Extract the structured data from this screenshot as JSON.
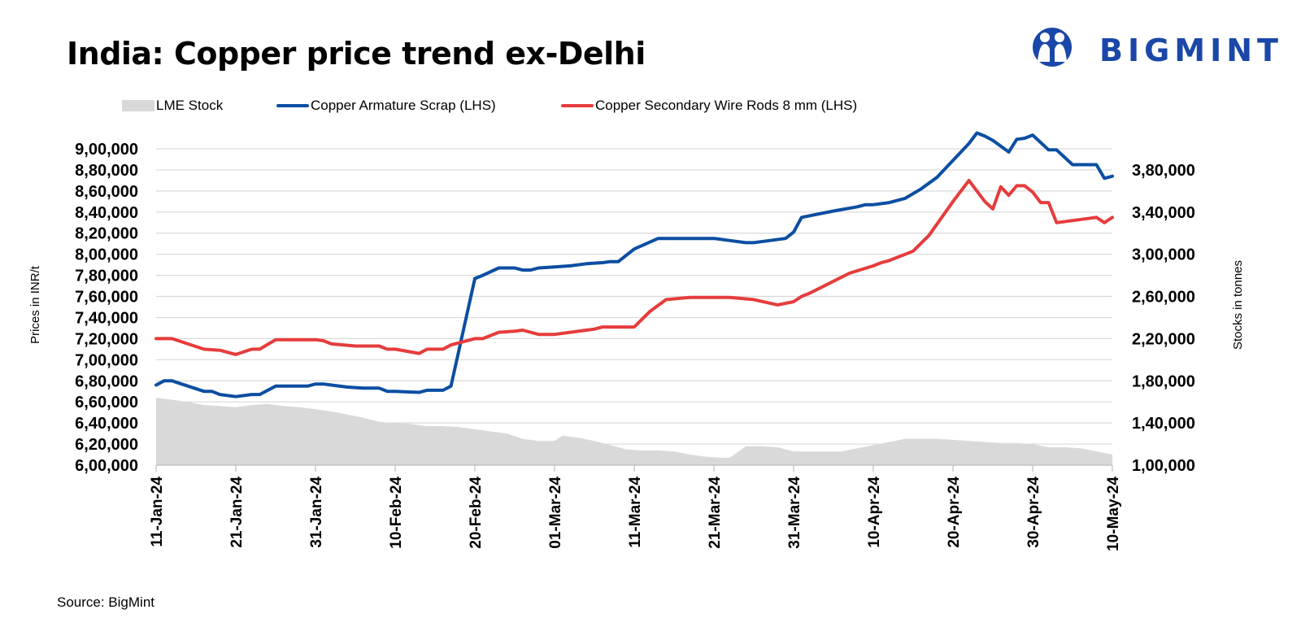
{
  "title": "India: Copper price trend ex-Delhi",
  "brand": {
    "name": "BIGMINT",
    "color": "#1a47a8"
  },
  "source": "Source: BigMint",
  "legend": [
    {
      "label": "LME Stock",
      "kind": "area",
      "color": "#d9d9d9"
    },
    {
      "label": "Copper Armature Scrap (LHS)",
      "kind": "line",
      "color": "#0b4ea2"
    },
    {
      "label": "Copper Secondary Wire Rods 8 mm (LHS)",
      "kind": "line",
      "color": "#e63c3c"
    }
  ],
  "chart_data": {
    "type": "line",
    "title": "India: Copper price trend ex-Delhi",
    "ylabel": "Prices in INR/t",
    "y2label": "Stocks in tonnes",
    "x_range": [
      "2024-01-11",
      "2024-05-10"
    ],
    "x_ticks": [
      "11-Jan-24",
      "21-Jan-24",
      "31-Jan-24",
      "10-Feb-24",
      "20-Feb-24",
      "01-Mar-24",
      "11-Mar-24",
      "21-Mar-24",
      "31-Mar-24",
      "10-Apr-24",
      "20-Apr-24",
      "30-Apr-24",
      "10-May-24"
    ],
    "ylim": [
      600000,
      900000
    ],
    "y_ticks": [
      "6,00,000",
      "6,20,000",
      "6,40,000",
      "6,60,000",
      "6,80,000",
      "7,00,000",
      "7,20,000",
      "7,40,000",
      "7,60,000",
      "7,80,000",
      "8,00,000",
      "8,20,000",
      "8,40,000",
      "8,60,000",
      "8,80,000",
      "9,00,000"
    ],
    "y2lim": [
      100000,
      380000
    ],
    "y2_ticks": [
      "1,00,000",
      "1,40,000",
      "1,80,000",
      "2,20,000",
      "2,60,000",
      "3,00,000",
      "3,40,000",
      "3,80,000"
    ],
    "grid": true,
    "legend_position": "top",
    "series": [
      {
        "name": "LME Stock",
        "axis": "right",
        "kind": "area",
        "color": "#d9d9d9",
        "x": [
          "2024-01-11",
          "2024-01-13",
          "2024-01-15",
          "2024-01-17",
          "2024-01-19",
          "2024-01-21",
          "2024-01-23",
          "2024-01-25",
          "2024-01-27",
          "2024-01-29",
          "2024-01-31",
          "2024-02-02",
          "2024-02-04",
          "2024-02-06",
          "2024-02-08",
          "2024-02-10",
          "2024-02-12",
          "2024-02-14",
          "2024-02-16",
          "2024-02-18",
          "2024-02-20",
          "2024-02-22",
          "2024-02-24",
          "2024-02-26",
          "2024-02-28",
          "2024-03-01",
          "2024-03-02",
          "2024-03-04",
          "2024-03-06",
          "2024-03-08",
          "2024-03-10",
          "2024-03-12",
          "2024-03-14",
          "2024-03-16",
          "2024-03-18",
          "2024-03-20",
          "2024-03-22",
          "2024-03-23",
          "2024-03-25",
          "2024-03-27",
          "2024-03-29",
          "2024-03-31",
          "2024-04-02",
          "2024-04-04",
          "2024-04-06",
          "2024-04-08",
          "2024-04-10",
          "2024-04-12",
          "2024-04-14",
          "2024-04-16",
          "2024-04-18",
          "2024-04-20",
          "2024-04-22",
          "2024-04-24",
          "2024-04-26",
          "2024-04-28",
          "2024-04-30",
          "2024-05-02",
          "2024-05-04",
          "2024-05-06",
          "2024-05-08",
          "2024-05-10"
        ],
        "values": [
          164000,
          162000,
          160000,
          157000,
          156000,
          155000,
          157000,
          158000,
          156000,
          155000,
          153000,
          151000,
          148000,
          145000,
          141000,
          140000,
          139000,
          137000,
          137000,
          136000,
          134000,
          132000,
          130000,
          125000,
          123000,
          123000,
          128000,
          126000,
          123000,
          119000,
          115000,
          114000,
          114000,
          113000,
          110000,
          108000,
          107000,
          107000,
          118000,
          118000,
          117000,
          113000,
          113000,
          113000,
          113000,
          116000,
          119000,
          122000,
          125000,
          125000,
          125000,
          124000,
          123000,
          122000,
          121000,
          121000,
          120000,
          117000,
          117000,
          116000,
          113000,
          110000
        ]
      },
      {
        "name": "Copper Armature Scrap (LHS)",
        "axis": "left",
        "kind": "line",
        "color": "#0b4ea2",
        "x": [
          "2024-01-11",
          "2024-01-12",
          "2024-01-13",
          "2024-01-15",
          "2024-01-17",
          "2024-01-18",
          "2024-01-19",
          "2024-01-21",
          "2024-01-23",
          "2024-01-24",
          "2024-01-26",
          "2024-01-28",
          "2024-01-30",
          "2024-01-31",
          "2024-02-01",
          "2024-02-02",
          "2024-02-04",
          "2024-02-06",
          "2024-02-08",
          "2024-02-09",
          "2024-02-10",
          "2024-02-13",
          "2024-02-14",
          "2024-02-16",
          "2024-02-17",
          "2024-02-20",
          "2024-02-21",
          "2024-02-23",
          "2024-02-25",
          "2024-02-26",
          "2024-02-27",
          "2024-02-28",
          "2024-03-01",
          "2024-03-03",
          "2024-03-05",
          "2024-03-07",
          "2024-03-08",
          "2024-03-09",
          "2024-03-11",
          "2024-03-14",
          "2024-03-15",
          "2024-03-17",
          "2024-03-19",
          "2024-03-21",
          "2024-03-23",
          "2024-03-25",
          "2024-03-26",
          "2024-03-28",
          "2024-03-30",
          "2024-03-31",
          "2024-04-01",
          "2024-04-05",
          "2024-04-08",
          "2024-04-09",
          "2024-04-10",
          "2024-04-12",
          "2024-04-14",
          "2024-04-16",
          "2024-04-18",
          "2024-04-20",
          "2024-04-22",
          "2024-04-23",
          "2024-04-24",
          "2024-04-25",
          "2024-04-27",
          "2024-04-28",
          "2024-04-29",
          "2024-04-30",
          "2024-05-02",
          "2024-05-03",
          "2024-05-05",
          "2024-05-08",
          "2024-05-09",
          "2024-05-10"
        ],
        "values": [
          676000,
          680000,
          680000,
          675000,
          670000,
          670000,
          667000,
          665000,
          667000,
          667000,
          675000,
          675000,
          675000,
          677000,
          677000,
          676000,
          674000,
          673000,
          673000,
          670000,
          670000,
          669000,
          671000,
          671000,
          675000,
          777000,
          780000,
          787000,
          787000,
          785000,
          785000,
          787000,
          788000,
          789000,
          791000,
          792000,
          793000,
          793000,
          805000,
          815000,
          815000,
          815000,
          815000,
          815000,
          813000,
          811000,
          811000,
          813000,
          815000,
          821000,
          835000,
          841000,
          845000,
          847000,
          847000,
          849000,
          853000,
          862000,
          873000,
          889000,
          905000,
          915000,
          912000,
          908000,
          897000,
          909000,
          910000,
          913000,
          899000,
          899000,
          885000,
          885000,
          872000,
          874000
        ],
        "note": "values in INR/t"
      },
      {
        "name": "Copper Secondary Wire Rods 8 mm (LHS)",
        "axis": "left",
        "kind": "line",
        "color": "#e63c3c",
        "x": [
          "2024-01-11",
          "2024-01-13",
          "2024-01-15",
          "2024-01-17",
          "2024-01-19",
          "2024-01-21",
          "2024-01-23",
          "2024-01-24",
          "2024-01-26",
          "2024-01-28",
          "2024-01-30",
          "2024-01-31",
          "2024-02-01",
          "2024-02-02",
          "2024-02-05",
          "2024-02-07",
          "2024-02-08",
          "2024-02-09",
          "2024-02-10",
          "2024-02-13",
          "2024-02-14",
          "2024-02-16",
          "2024-02-17",
          "2024-02-18",
          "2024-02-20",
          "2024-02-21",
          "2024-02-23",
          "2024-02-25",
          "2024-02-26",
          "2024-02-28",
          "2024-03-01",
          "2024-03-03",
          "2024-03-05",
          "2024-03-06",
          "2024-03-07",
          "2024-03-08",
          "2024-03-10",
          "2024-03-11",
          "2024-03-13",
          "2024-03-15",
          "2024-03-18",
          "2024-03-21",
          "2024-03-23",
          "2024-03-26",
          "2024-03-29",
          "2024-03-31",
          "2024-04-01",
          "2024-04-02",
          "2024-04-07",
          "2024-04-10",
          "2024-04-11",
          "2024-04-12",
          "2024-04-15",
          "2024-04-17",
          "2024-04-20",
          "2024-04-22",
          "2024-04-24",
          "2024-04-25",
          "2024-04-26",
          "2024-04-27",
          "2024-04-28",
          "2024-04-29",
          "2024-04-30",
          "2024-05-01",
          "2024-05-02",
          "2024-05-03",
          "2024-05-08",
          "2024-05-09",
          "2024-05-10"
        ],
        "values": [
          720000,
          720000,
          715000,
          710000,
          709000,
          705000,
          710000,
          710000,
          719000,
          719000,
          719000,
          719000,
          718000,
          715000,
          713000,
          713000,
          713000,
          710000,
          710000,
          706000,
          710000,
          710000,
          714000,
          716000,
          720000,
          720000,
          726000,
          727000,
          728000,
          724000,
          724000,
          726000,
          728000,
          729000,
          731000,
          731000,
          731000,
          731000,
          746000,
          757000,
          759000,
          759000,
          759000,
          757000,
          752000,
          755000,
          760000,
          763000,
          782000,
          789000,
          792000,
          794000,
          803000,
          818000,
          850000,
          870000,
          850000,
          843000,
          864000,
          856000,
          865000,
          865000,
          859000,
          849000,
          849000,
          830000,
          835000,
          830000,
          835000
        ]
      }
    ]
  }
}
